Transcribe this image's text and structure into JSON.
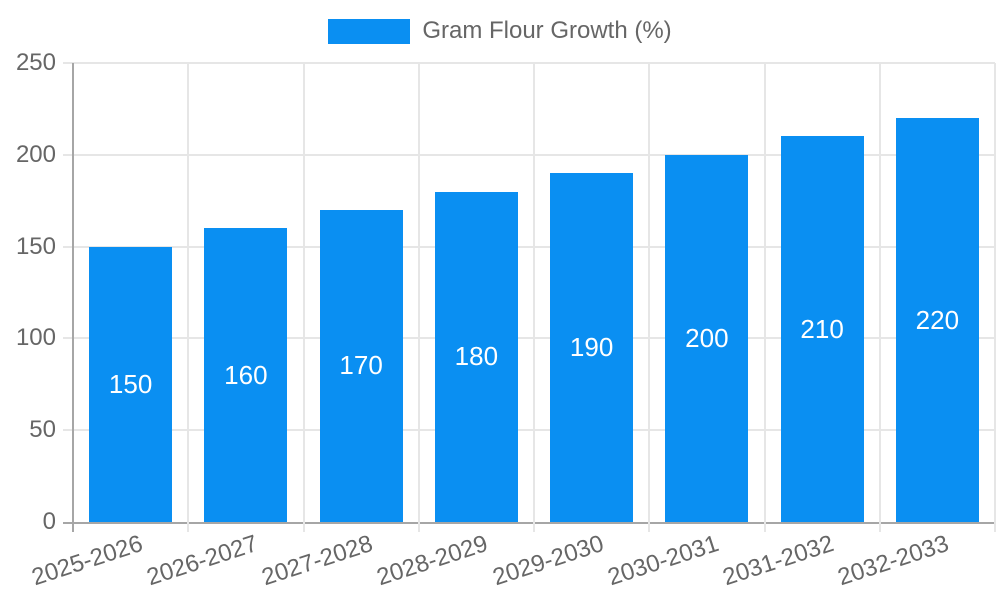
{
  "chart_data": {
    "type": "bar",
    "categories": [
      "2025-2026",
      "2026-2027",
      "2027-2028",
      "2028-2029",
      "2029-2030",
      "2030-2031",
      "2031-2032",
      "2032-2033"
    ],
    "series": [
      {
        "name": "Gram Flour Growth (%)",
        "values": [
          150,
          160,
          170,
          180,
          190,
          200,
          210,
          220
        ],
        "color": "#0a8ff2"
      }
    ],
    "title": "",
    "xlabel": "",
    "ylabel": "",
    "ylim": [
      0,
      250
    ],
    "yticks": [
      0,
      50,
      100,
      150,
      200,
      250
    ],
    "grid": "both",
    "legend_position": "top-center",
    "value_labels": "inside-center"
  },
  "colors": {
    "bar": "#0a8ff2",
    "axis_text": "#666666",
    "grid_light": "#e6e6e6",
    "axis_line_dark": "#a6a6a6",
    "value_label": "#ffffff",
    "background": "#ffffff"
  }
}
